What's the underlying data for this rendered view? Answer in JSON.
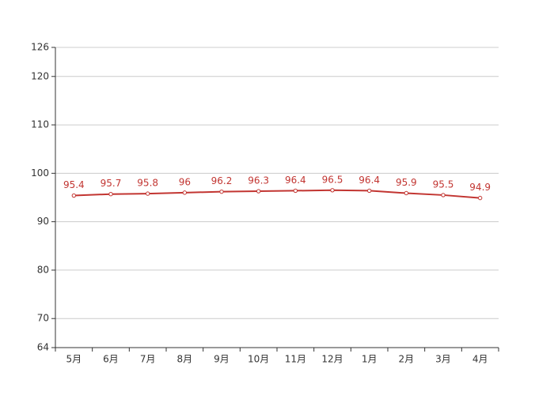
{
  "chart_data": {
    "type": "line",
    "categories": [
      "5月",
      "6月",
      "7月",
      "8月",
      "9月",
      "10月",
      "11月",
      "12月",
      "1月",
      "2月",
      "3月",
      "4月"
    ],
    "series": [
      {
        "color": "#c23531",
        "values": [
          95.4,
          95.7,
          95.8,
          96,
          96.2,
          96.3,
          96.4,
          96.5,
          96.4,
          95.9,
          95.5,
          94.9
        ]
      }
    ],
    "ylim": [
      64,
      126
    ],
    "yticks": [
      64,
      70,
      80,
      90,
      100,
      110,
      120,
      126
    ],
    "grid": true
  }
}
